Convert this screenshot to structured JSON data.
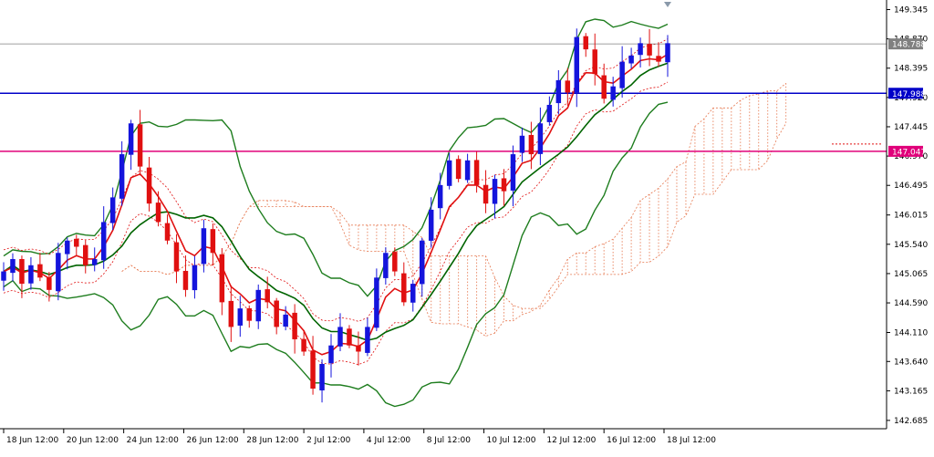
{
  "chart_data": {
    "type": "candlestick",
    "title": "",
    "xlabel": "",
    "ylabel": "",
    "ylim": [
      142.55,
      149.5
    ],
    "grid": false,
    "legend": "none",
    "y_ticks": [
      "149.345",
      "148.870",
      "148.395",
      "147.920",
      "147.445",
      "146.970",
      "146.495",
      "146.015",
      "145.540",
      "145.065",
      "144.590",
      "144.110",
      "143.640",
      "143.165",
      "142.685"
    ],
    "x_ticks": [
      "18 Jun 12:00",
      "20 Jun 12:00",
      "24 Jun 12:00",
      "26 Jun 12:00",
      "28 Jun 12:00",
      "2 Jul 12:00",
      "4 Jul 12:00",
      "8 Jul 12:00",
      "10 Jul 12:00",
      "12 Jul 12:00",
      "16 Jul 12:00",
      "18 Jul 12:00"
    ],
    "closes": [
      145.1,
      145.3,
      144.9,
      145.2,
      145.0,
      144.8,
      145.4,
      145.6,
      145.5,
      145.2,
      145.3,
      145.9,
      146.3,
      147.0,
      147.5,
      146.8,
      146.2,
      145.9,
      145.6,
      145.1,
      144.8,
      145.2,
      145.8,
      145.4,
      144.6,
      144.2,
      144.5,
      144.3,
      144.8,
      144.6,
      144.2,
      144.4,
      144.0,
      143.8,
      143.2,
      143.6,
      143.9,
      144.2,
      143.9,
      143.8,
      144.2,
      145.0,
      145.4,
      145.1,
      144.6,
      144.9,
      145.6,
      146.1,
      146.5,
      146.9,
      146.6,
      146.9,
      146.5,
      146.2,
      146.6,
      146.4,
      147.0,
      147.3,
      147.0,
      147.5,
      147.8,
      148.2,
      148.0,
      148.9,
      148.7,
      148.3,
      147.9,
      148.1,
      148.5,
      148.6,
      148.8,
      148.6,
      148.5,
      148.8
    ],
    "levels": [
      {
        "value": 148.788,
        "label": "148.788",
        "color": "#808080"
      },
      {
        "value": 147.988,
        "label": "147.988",
        "color": "#0000c8"
      },
      {
        "value": 147.047,
        "label": "147.047",
        "color": "#e0007a"
      }
    ],
    "colors": {
      "bull": "#1414dc",
      "bear": "#e01010",
      "fast_ma": "#e01010",
      "slow_ma": "#006400",
      "bands": "#1e7d1e",
      "cloud": "#e67850",
      "axis": "#000000"
    }
  }
}
